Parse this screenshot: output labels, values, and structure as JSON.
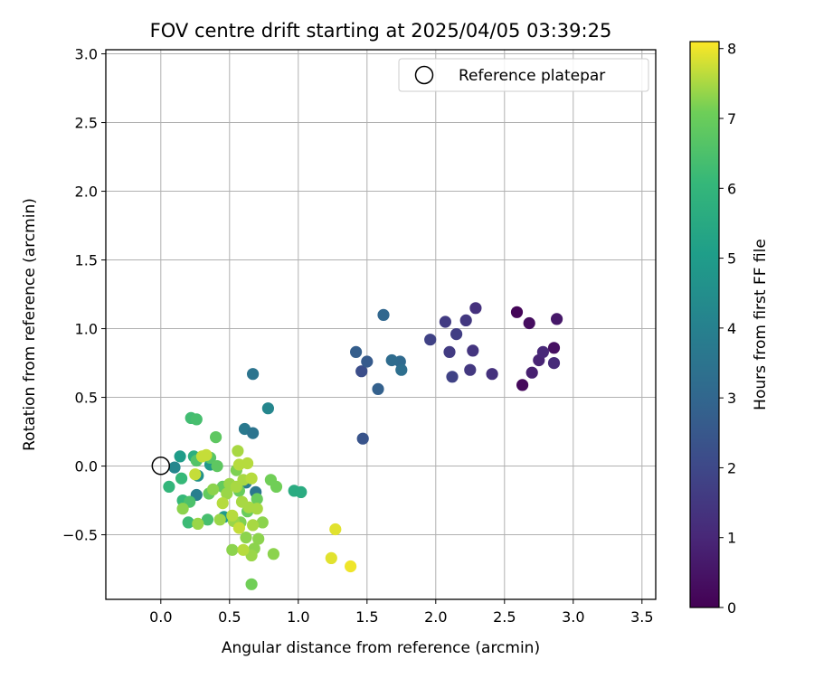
{
  "chart_data": {
    "type": "scatter",
    "title": "FOV centre drift starting at 2025/04/05 03:39:25",
    "xlabel": "Angular distance from reference (arcmin)",
    "ylabel": "Rotation from reference (arcmin)",
    "xlim": [
      -0.4,
      3.6
    ],
    "ylim": [
      -0.97,
      3.03
    ],
    "x_ticks": [
      "0.0",
      "0.5",
      "1.0",
      "1.5",
      "2.0",
      "2.5",
      "3.0",
      "3.5"
    ],
    "y_ticks": [
      "−0.5",
      "0.0",
      "0.5",
      "1.0",
      "1.5",
      "2.0",
      "2.5",
      "3.0"
    ],
    "grid": true,
    "legend": {
      "position": "top-right",
      "entries": [
        "Reference platepar"
      ]
    },
    "reference_point": {
      "x": 0.0,
      "y": 0.0,
      "label": "Reference platepar"
    },
    "colorbar": {
      "label": "Hours from first FF file",
      "min": 0,
      "max": 8.1,
      "ticks": [
        "0",
        "1",
        "2",
        "3",
        "4",
        "5",
        "6",
        "7",
        "8"
      ],
      "colormap": "viridis"
    },
    "points": [
      [
        2.59,
        1.12,
        0.1
      ],
      [
        2.63,
        0.59,
        0.2
      ],
      [
        2.68,
        1.04,
        0.3
      ],
      [
        2.86,
        0.86,
        0.4
      ],
      [
        2.88,
        1.07,
        0.6
      ],
      [
        2.7,
        0.68,
        0.8
      ],
      [
        2.75,
        0.77,
        0.9
      ],
      [
        2.78,
        0.83,
        1.0
      ],
      [
        2.86,
        0.75,
        1.1
      ],
      [
        2.41,
        0.67,
        1.3
      ],
      [
        2.29,
        1.15,
        1.3
      ],
      [
        2.27,
        0.84,
        1.4
      ],
      [
        2.22,
        1.06,
        1.5
      ],
      [
        2.25,
        0.7,
        1.5
      ],
      [
        2.1,
        0.83,
        1.6
      ],
      [
        2.07,
        1.05,
        1.6
      ],
      [
        2.15,
        0.96,
        1.7
      ],
      [
        2.12,
        0.65,
        1.8
      ],
      [
        1.96,
        0.92,
        1.8
      ],
      [
        1.46,
        0.69,
        2.2
      ],
      [
        1.47,
        0.2,
        2.4
      ],
      [
        1.5,
        0.76,
        2.6
      ],
      [
        1.42,
        0.83,
        2.7
      ],
      [
        1.58,
        0.56,
        2.8
      ],
      [
        1.62,
        1.1,
        3.0
      ],
      [
        1.74,
        0.76,
        3.1
      ],
      [
        1.68,
        0.77,
        3.2
      ],
      [
        1.75,
        0.7,
        3.3
      ],
      [
        0.67,
        0.67,
        3.5
      ],
      [
        0.61,
        0.27,
        3.7
      ],
      [
        0.67,
        0.24,
        3.5
      ],
      [
        0.69,
        -0.19,
        3.6
      ],
      [
        0.62,
        -0.12,
        3.8
      ],
      [
        0.78,
        0.42,
        4.2
      ],
      [
        0.26,
        -0.21,
        3.9
      ],
      [
        0.1,
        -0.01,
        4.2
      ],
      [
        0.27,
        -0.07,
        4.6
      ],
      [
        0.36,
        0.01,
        4.8
      ],
      [
        0.46,
        -0.37,
        4.9
      ],
      [
        0.14,
        0.07,
        5.0
      ],
      [
        0.97,
        -0.18,
        5.6
      ],
      [
        1.02,
        -0.19,
        5.6
      ],
      [
        0.24,
        0.07,
        5.7
      ],
      [
        0.06,
        -0.15,
        6.0
      ],
      [
        0.16,
        -0.25,
        6.1
      ],
      [
        0.15,
        -0.09,
        6.1
      ],
      [
        0.2,
        -0.41,
        6.2
      ],
      [
        0.22,
        0.35,
        6.3
      ],
      [
        0.26,
        0.34,
        6.4
      ],
      [
        0.34,
        -0.39,
        6.4
      ],
      [
        0.21,
        -0.26,
        6.5
      ],
      [
        0.26,
        0.04,
        6.6
      ],
      [
        0.36,
        0.06,
        6.7
      ],
      [
        0.41,
        0.0,
        6.8
      ],
      [
        0.4,
        0.21,
        6.8
      ],
      [
        0.35,
        -0.2,
        6.9
      ],
      [
        0.45,
        -0.15,
        6.9
      ],
      [
        0.57,
        -0.18,
        7.0
      ],
      [
        0.63,
        -0.33,
        7.0
      ],
      [
        0.7,
        -0.24,
        7.0
      ],
      [
        0.84,
        -0.15,
        7.1
      ],
      [
        0.8,
        -0.1,
        7.1
      ],
      [
        0.55,
        -0.03,
        7.2
      ],
      [
        0.58,
        -0.41,
        7.2
      ],
      [
        0.62,
        -0.52,
        7.3
      ],
      [
        0.66,
        -0.86,
        7.1
      ],
      [
        0.52,
        -0.61,
        7.3
      ],
      [
        0.68,
        -0.6,
        7.3
      ],
      [
        0.71,
        -0.53,
        7.3
      ],
      [
        0.74,
        -0.41,
        7.3
      ],
      [
        0.82,
        -0.64,
        7.3
      ],
      [
        0.16,
        -0.31,
        7.3
      ],
      [
        0.27,
        -0.42,
        7.4
      ],
      [
        0.43,
        -0.39,
        7.4
      ],
      [
        0.38,
        -0.17,
        7.3
      ],
      [
        0.48,
        -0.2,
        7.4
      ],
      [
        0.5,
        -0.13,
        7.4
      ],
      [
        0.53,
        -0.4,
        7.4
      ],
      [
        0.59,
        -0.26,
        7.5
      ],
      [
        0.56,
        0.11,
        7.5
      ],
      [
        0.55,
        -0.15,
        7.5
      ],
      [
        0.6,
        -0.1,
        7.5
      ],
      [
        0.64,
        -0.3,
        7.5
      ],
      [
        0.67,
        -0.43,
        7.5
      ],
      [
        0.66,
        -0.65,
        7.4
      ],
      [
        0.7,
        -0.31,
        7.5
      ],
      [
        0.45,
        -0.27,
        7.6
      ],
      [
        0.52,
        -0.36,
        7.6
      ],
      [
        0.57,
        0.01,
        7.6
      ],
      [
        0.6,
        -0.61,
        7.6
      ],
      [
        0.63,
        0.02,
        7.6
      ],
      [
        0.66,
        -0.09,
        7.6
      ],
      [
        0.3,
        0.07,
        7.7
      ],
      [
        0.33,
        0.08,
        7.7
      ],
      [
        0.25,
        -0.06,
        7.7
      ],
      [
        0.57,
        -0.45,
        7.7
      ],
      [
        1.24,
        -0.67,
        7.9
      ],
      [
        1.27,
        -0.46,
        7.9
      ],
      [
        1.38,
        -0.73,
        8.0
      ]
    ]
  }
}
